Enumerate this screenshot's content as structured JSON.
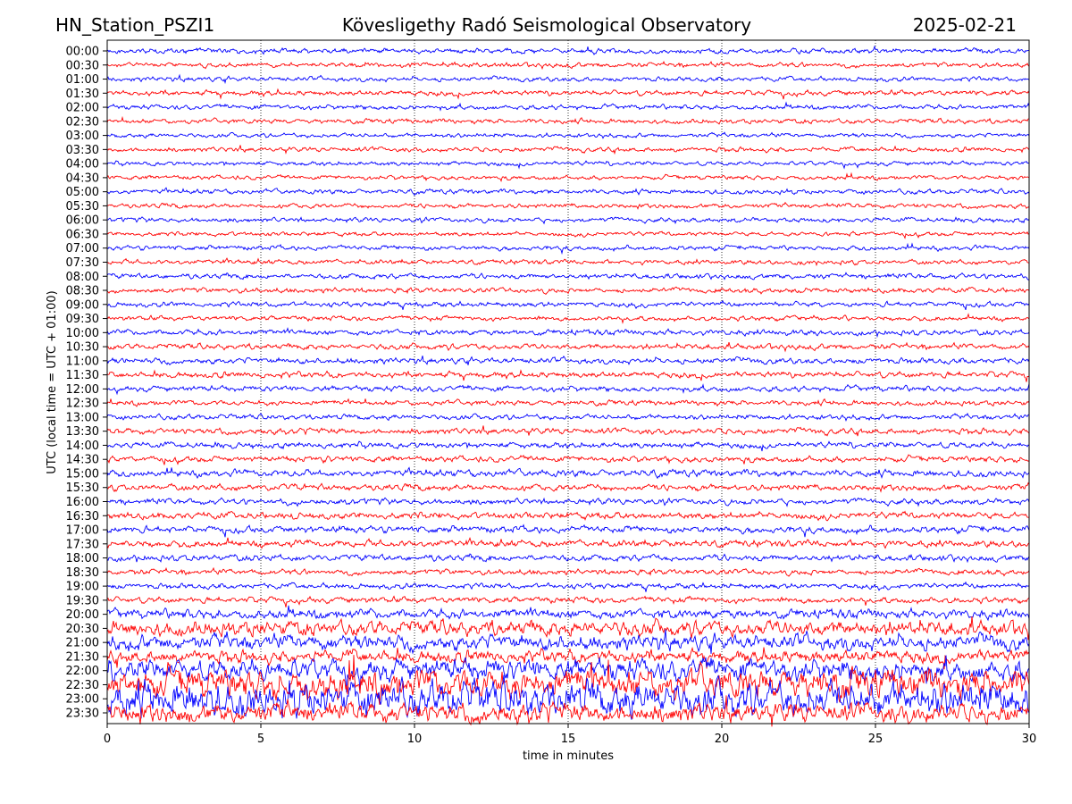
{
  "header": {
    "station": "HN_Station_PSZI1",
    "observatory": "Kövesligethy Radó Seismological Observatory",
    "date": "2025-02-21"
  },
  "chart_data": {
    "type": "line",
    "title": "Kövesligethy Radó Seismological Observatory",
    "xlabel": "time in minutes",
    "ylabel": "UTC (local time = UTC + 01:00)",
    "xlim": [
      0,
      30
    ],
    "xticks": [
      0,
      5,
      10,
      15,
      20,
      25,
      30
    ],
    "grid": "vertical dotted at x ticks",
    "colors": [
      "#0000ff",
      "#ff0000"
    ],
    "rows": [
      "00:00",
      "00:30",
      "01:00",
      "01:30",
      "02:00",
      "02:30",
      "03:00",
      "03:30",
      "04:00",
      "04:30",
      "05:00",
      "05:30",
      "06:00",
      "06:30",
      "07:00",
      "07:30",
      "08:00",
      "08:30",
      "09:00",
      "09:30",
      "10:00",
      "10:30",
      "11:00",
      "11:30",
      "12:00",
      "12:30",
      "13:00",
      "13:30",
      "14:00",
      "14:30",
      "15:00",
      "15:30",
      "16:00",
      "16:30",
      "17:00",
      "17:30",
      "18:00",
      "18:30",
      "19:00",
      "19:30",
      "20:00",
      "20:30",
      "21:00",
      "21:30",
      "22:00",
      "22:30",
      "23:00",
      "23:30"
    ],
    "relative_amplitude": [
      1.2,
      1.1,
      1.1,
      1.2,
      1.1,
      1.1,
      1.0,
      1.1,
      1.0,
      1.0,
      1.1,
      1.1,
      1.1,
      1.0,
      1.1,
      1.1,
      1.2,
      1.2,
      1.2,
      1.1,
      1.3,
      1.3,
      1.4,
      1.4,
      1.3,
      1.2,
      1.2,
      1.4,
      1.4,
      1.4,
      1.6,
      1.5,
      1.4,
      1.6,
      1.6,
      1.6,
      1.5,
      1.3,
      1.3,
      1.4,
      2.2,
      3.5,
      3.6,
      3.0,
      5.0,
      7.0,
      8.0,
      4.5
    ]
  }
}
